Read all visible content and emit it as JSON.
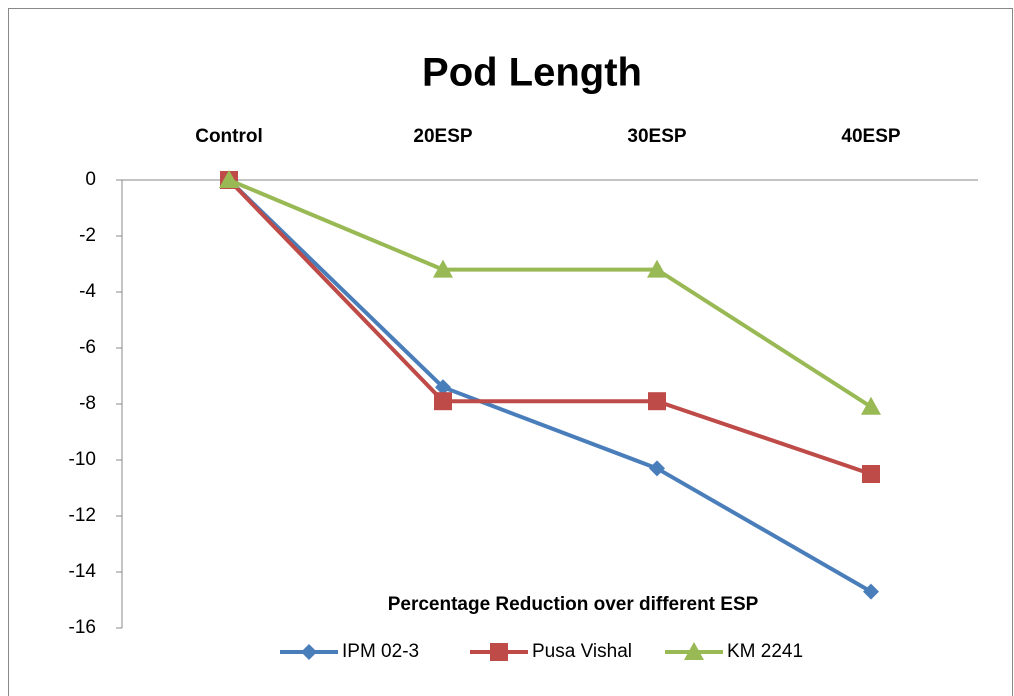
{
  "chart_data": {
    "type": "line",
    "title": "Pod Length",
    "x_label": "Percentage Reduction over different ESP",
    "categories": [
      "Control",
      "20ESP",
      "30ESP",
      "40ESP"
    ],
    "series": [
      {
        "name": "IPM 02-3",
        "color": "#4a7ebb",
        "marker": "diamond",
        "values": [
          0,
          -7.4,
          -10.3,
          -14.7
        ]
      },
      {
        "name": "Pusa Vishal",
        "color": "#be4b48",
        "marker": "square",
        "values": [
          0,
          -7.9,
          -7.9,
          -10.5
        ]
      },
      {
        "name": "KM 2241",
        "color": "#98b954",
        "marker": "triangle",
        "values": [
          0,
          -3.2,
          -3.2,
          -8.1
        ]
      }
    ],
    "ylim": [
      -16,
      0
    ],
    "yticks": [
      0,
      -2,
      -4,
      -6,
      -8,
      -10,
      -12,
      -14,
      -16
    ],
    "legend": "bottom"
  }
}
